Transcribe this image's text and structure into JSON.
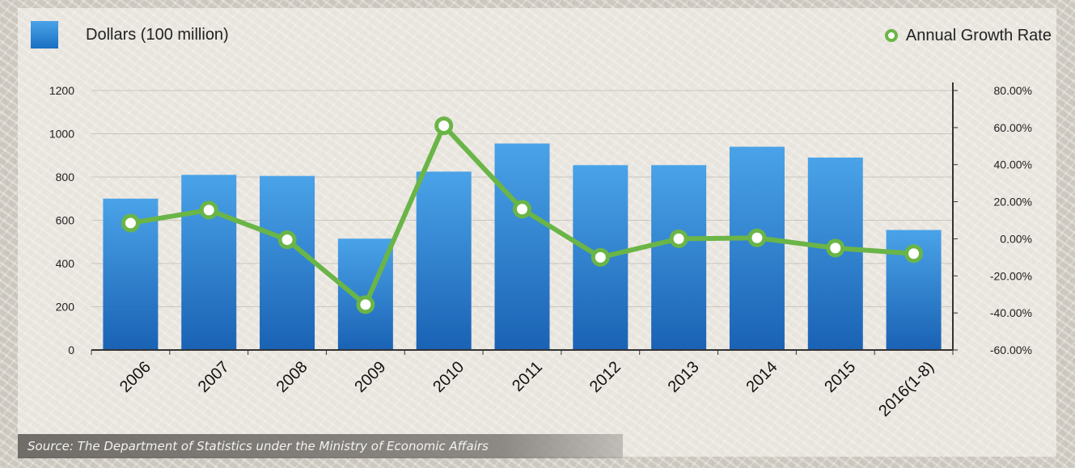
{
  "legend": {
    "bar_label": "Dollars (100 million)",
    "line_label": "Annual Growth Rate"
  },
  "source": "Source: The Department of Statistics under the Ministry of Economic Affairs",
  "colors": {
    "bar_top": "#4aa3e8",
    "bar_bottom": "#1a62b4",
    "line": "#6ab547",
    "axis": "#333333",
    "grid": "#c9c6bf"
  },
  "chart_data": {
    "type": "bar",
    "categories": [
      "2006",
      "2007",
      "2008",
      "2009",
      "2010",
      "2011",
      "2012",
      "2013",
      "2014",
      "2015",
      "2016(1-8)"
    ],
    "series": [
      {
        "name": "Dollars (100 million)",
        "type": "bar",
        "axis": "left",
        "values": [
          700,
          810,
          805,
          515,
          825,
          955,
          855,
          855,
          940,
          890,
          555
        ]
      },
      {
        "name": "Annual Growth Rate",
        "type": "line",
        "axis": "right",
        "values": [
          8.5,
          15.5,
          -0.5,
          -35.5,
          61.0,
          16.0,
          -10.0,
          0.0,
          0.5,
          -5.0,
          -8.0
        ]
      }
    ],
    "ylim_left": [
      0,
      1200
    ],
    "yticks_left": [
      "0",
      "200",
      "400",
      "600",
      "800",
      "1000",
      "1200"
    ],
    "ylim_right": [
      -60,
      80
    ],
    "yticks_right": [
      "-60.00%",
      "-40.00%",
      "-20.00%",
      "0.00%",
      "20.00%",
      "40.00%",
      "60.00%",
      "80.00%"
    ],
    "xlabel": "",
    "ylabel": "",
    "grid": true,
    "legend_position": "top"
  }
}
